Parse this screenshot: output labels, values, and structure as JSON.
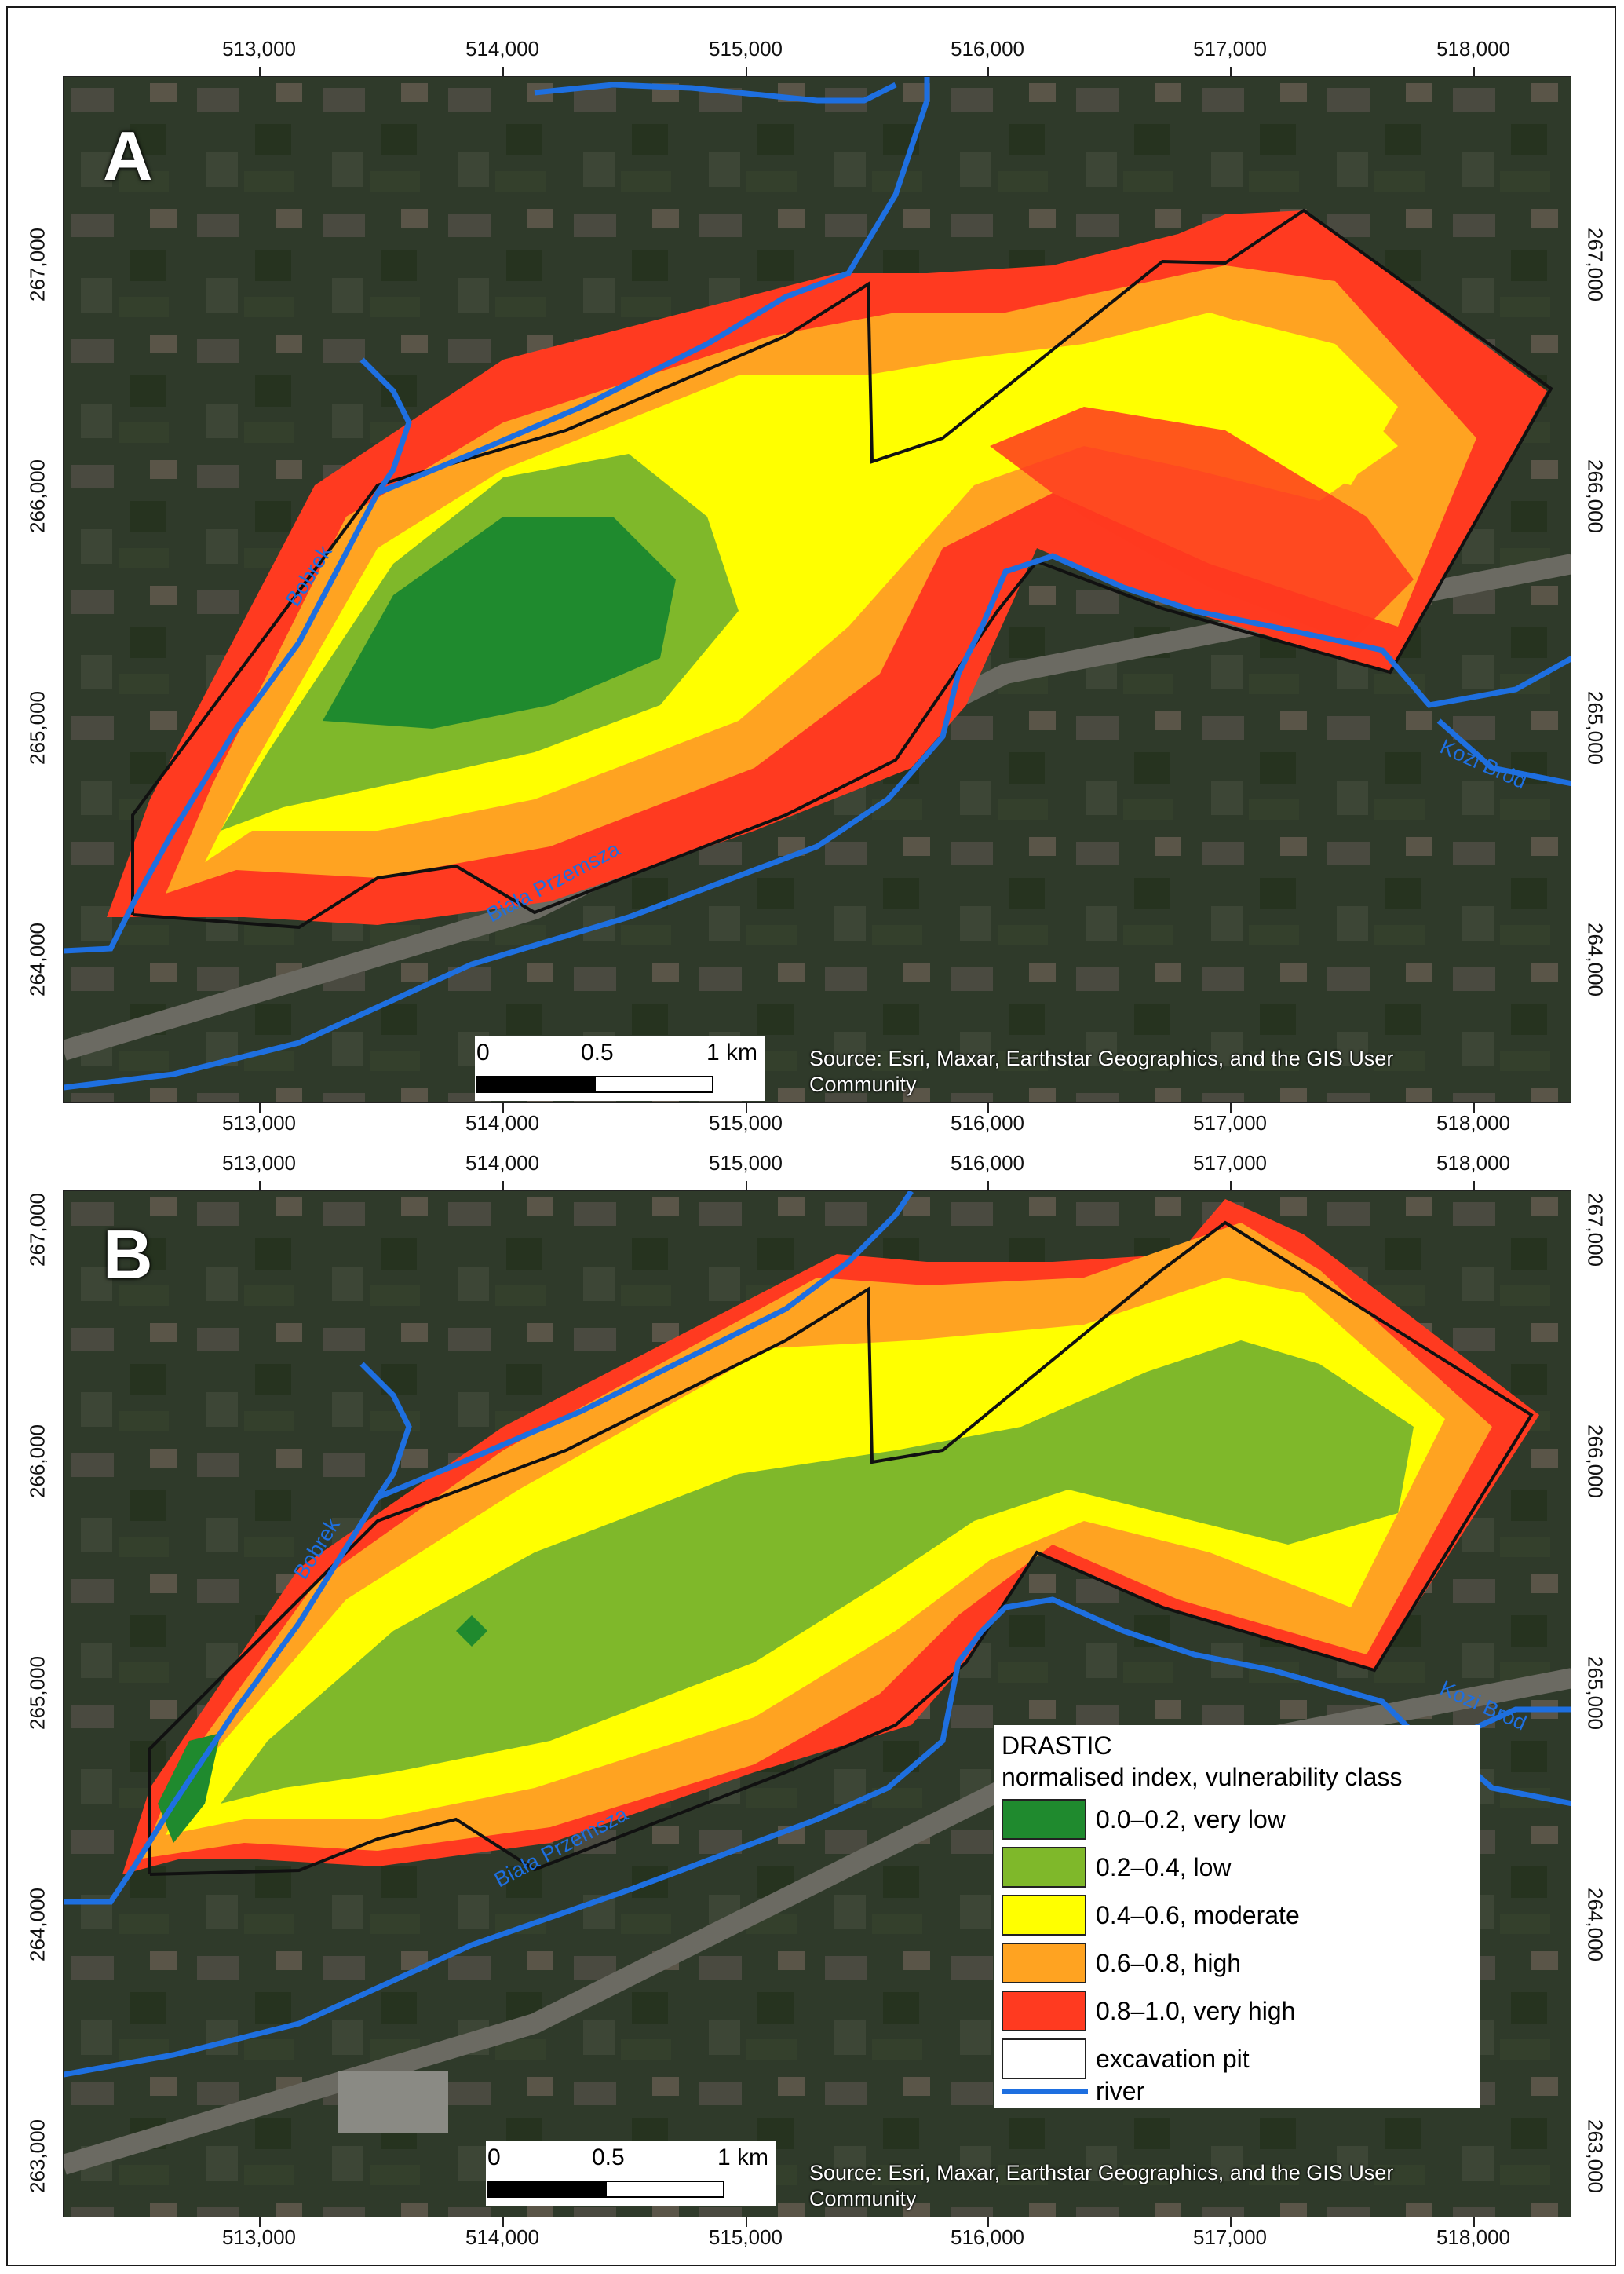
{
  "panels": [
    {
      "letter": "A",
      "x_ticks": [
        "513,000",
        "514,000",
        "515,000",
        "516,000",
        "517,000",
        "518,000"
      ],
      "y_ticks": [
        "267,000",
        "266,000",
        "265,000",
        "264,000"
      ],
      "source_text": "Source: Esri, Maxar, Earthstar Geographics, and the GIS User Community",
      "scale": {
        "labels": [
          "0",
          "0.5",
          "1 km"
        ]
      },
      "river_labels": [
        "Bobrek",
        "Biała Przemsza",
        "Kozi Bród"
      ]
    },
    {
      "letter": "B",
      "x_ticks": [
        "513,000",
        "514,000",
        "515,000",
        "516,000",
        "517,000",
        "518,000"
      ],
      "y_ticks": [
        "267,000",
        "266,000",
        "265,000",
        "264,000",
        "263,000"
      ],
      "source_text": "Source: Esri, Maxar, Earthstar Geographics, and the GIS User Community",
      "scale": {
        "labels": [
          "0",
          "0.5",
          "1 km"
        ]
      },
      "river_labels": [
        "Bobrek",
        "Biała Przemsza",
        "Kozi Bród"
      ]
    }
  ],
  "legend": {
    "title": "DRASTIC",
    "subtitle": "normalised index, vulnerability class",
    "classes": [
      {
        "label": "0.0–0.2, very low",
        "color": "#1f8a2e"
      },
      {
        "label": "0.2–0.4, low",
        "color": "#7fb82a"
      },
      {
        "label": "0.4–0.6, moderate",
        "color": "#ffff00"
      },
      {
        "label": "0.6–0.8, high",
        "color": "#ffa321"
      },
      {
        "label": "0.8–1.0, very high",
        "color": "#ff3a20"
      }
    ],
    "pit_label": "excavation pit",
    "river_label": "river",
    "river_color": "#1e6fe0"
  }
}
